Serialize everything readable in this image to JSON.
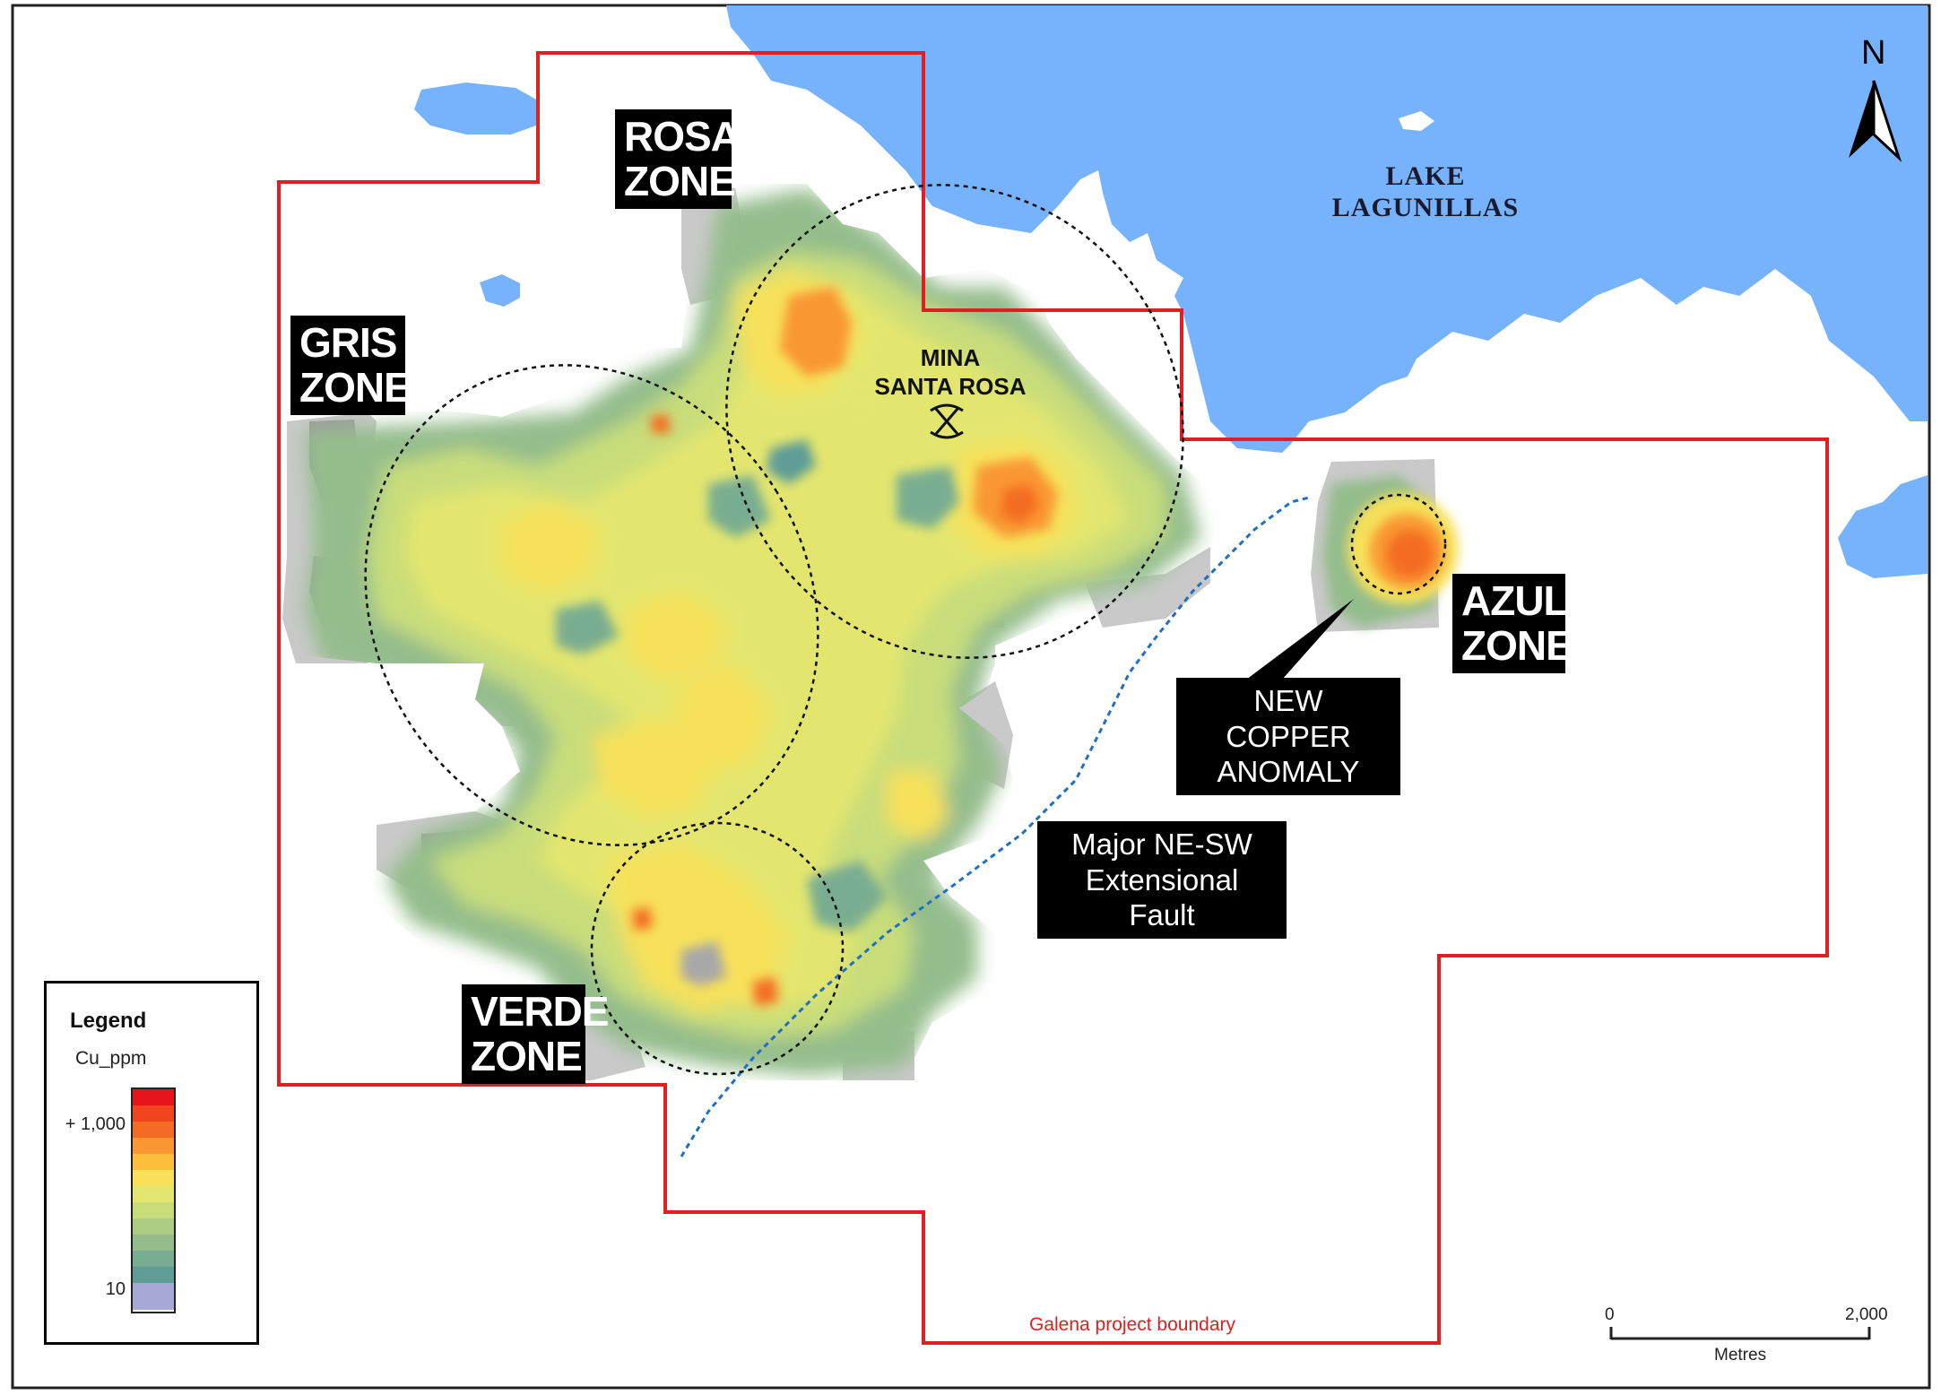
{
  "lake_label": [
    "LAKE",
    "LAGUNILLAS"
  ],
  "mine": {
    "label": [
      "MINA",
      "SANTA ROSA"
    ],
    "icon": "pickaxe-icon"
  },
  "zones": [
    {
      "key": "rosa",
      "lines": [
        "ROSA",
        "ZONE"
      ]
    },
    {
      "key": "gris",
      "lines": [
        "GRIS",
        "ZONE"
      ]
    },
    {
      "key": "azul",
      "lines": [
        "AZUL",
        "ZONE"
      ]
    },
    {
      "key": "verde",
      "lines": [
        "VERDE",
        "ZONE"
      ]
    }
  ],
  "callouts": {
    "anomaly": [
      "NEW COPPER",
      "ANOMALY"
    ],
    "fault": [
      "Major NE-SW",
      "Extensional Fault"
    ]
  },
  "boundary_label": "Galena project boundary",
  "north_arrow": {
    "label": "N",
    "icon": "north-arrow-icon"
  },
  "scale_bar": {
    "start": "0",
    "end": "2,000",
    "unit": "Metres"
  },
  "legend": {
    "title": "Legend",
    "field": "Cu_ppm",
    "max_label": "+ 1,000",
    "min_label": "10",
    "ramp_colors": [
      "#e8141b",
      "#f0441f",
      "#f46c24",
      "#f99732",
      "#fbbf3c",
      "#f7e15a",
      "#e3e66e",
      "#c8dd7a",
      "#aecd84",
      "#94bd8c",
      "#79ad91",
      "#5f9c97",
      "#a8a8d6"
    ]
  },
  "colors": {
    "water": "#76b3fc",
    "boundary": "#e02020",
    "fault": "#1f6fc4",
    "low_grey": "#9d9d9d",
    "light_grey": "#c9c9c9"
  }
}
